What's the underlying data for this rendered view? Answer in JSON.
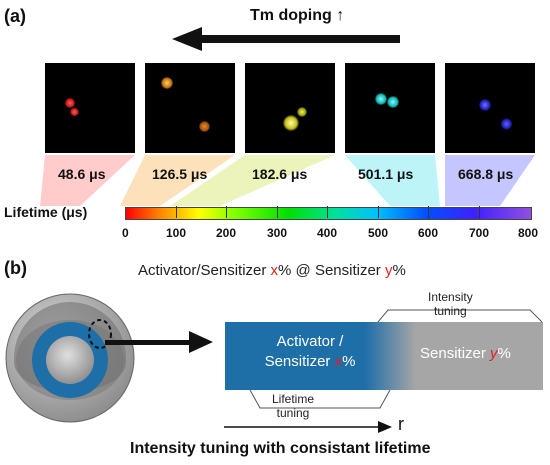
{
  "panel_a": {
    "label": "(a)",
    "doping_label": "Tm doping ↑",
    "lifetimes": [
      {
        "value": "48.6 μs",
        "color": "#ff4040"
      },
      {
        "value": "126.5 μs",
        "color": "#f5a020"
      },
      {
        "value": "182.6 μs",
        "color": "#d8e030"
      },
      {
        "value": "501.1 μs",
        "color": "#20e0e0"
      },
      {
        "value": "668.8 μs",
        "color": "#3838ff"
      }
    ],
    "scale_label": "Lifetime (μs)",
    "ticks": [
      "0",
      "100",
      "200",
      "300",
      "400",
      "500",
      "600",
      "700",
      "800"
    ]
  },
  "panel_b": {
    "label": "(b)",
    "title_parts": {
      "prefix": "Activator/Sensitizer ",
      "x": "x",
      "mid": "% @ Sensitizer ",
      "y": "y",
      "suffix": "%"
    },
    "core_line1": "Activator /",
    "core_line2_prefix": "Sensitizer ",
    "core_x": "x",
    "core_suffix": "%",
    "shell_prefix": "Sensitizer ",
    "shell_y": "y",
    "shell_suffix": "%",
    "intensity_line1": "Intensity",
    "intensity_line2": "tuning",
    "lifetime_line1": "Lifetime",
    "lifetime_line2": "tuning",
    "r_label": "r",
    "caption": "Intensity tuning with consistant lifetime"
  },
  "colors": {
    "core_blue": "#1e6ea8",
    "shell_gray": "#a6a6a6",
    "highlight_red": "#e02020"
  }
}
